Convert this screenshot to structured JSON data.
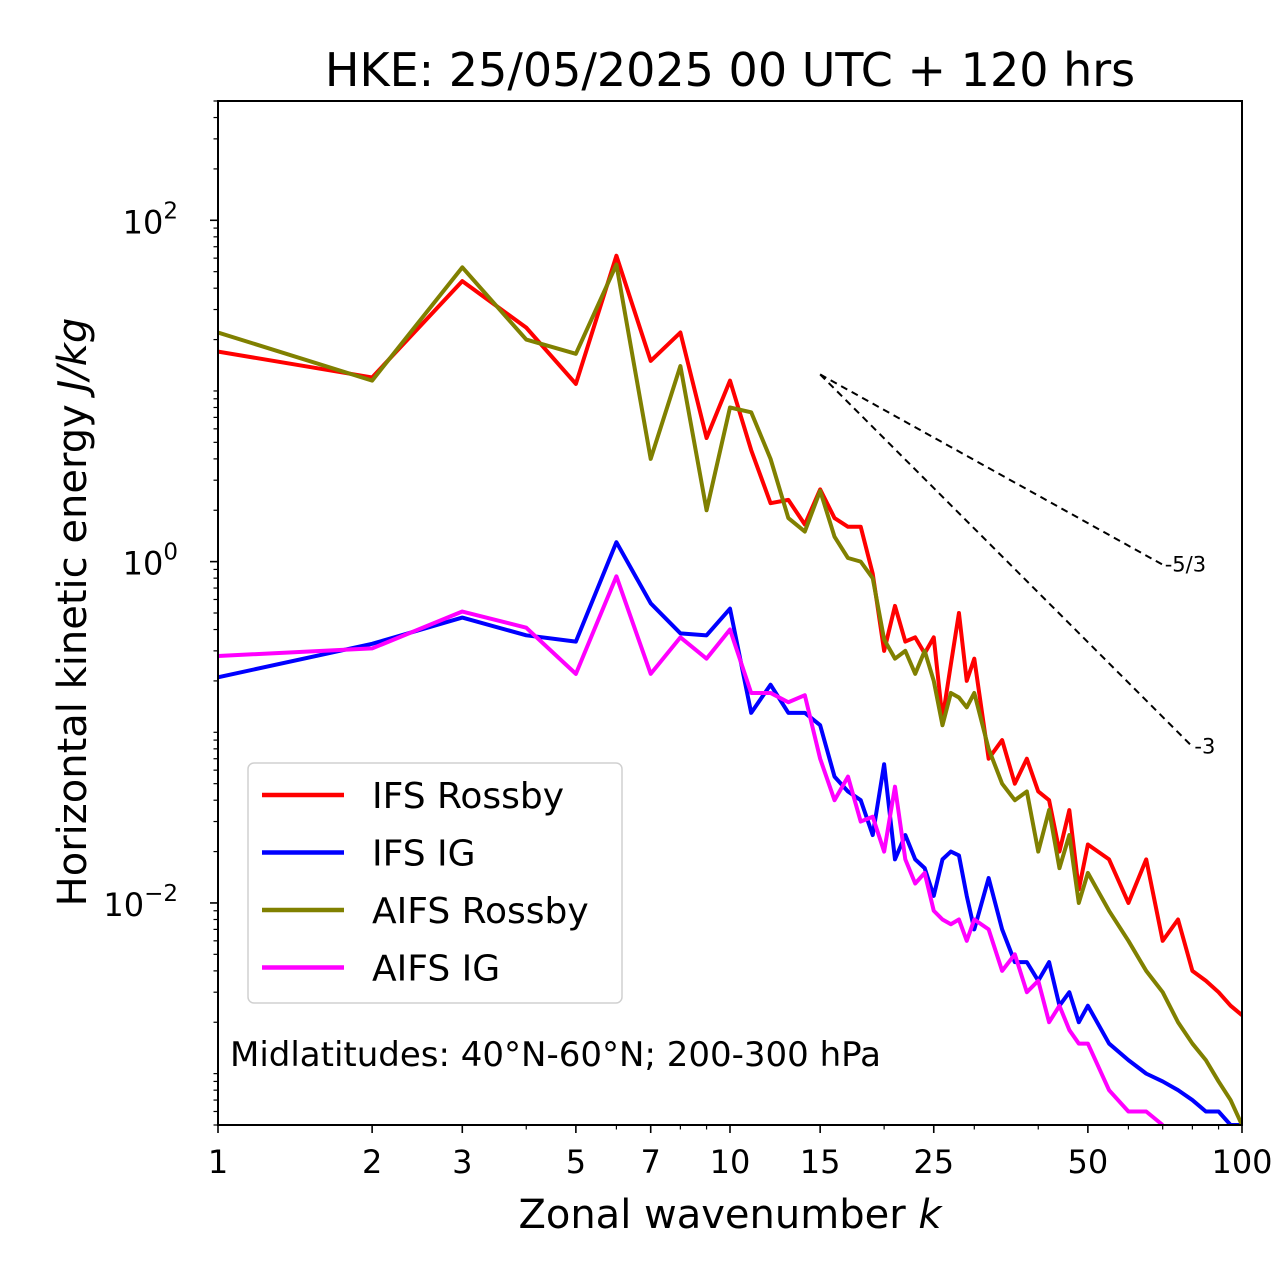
{
  "chart_data": {
    "type": "line",
    "title": "HKE: 25/05/2025 00 UTC + 120 hrs",
    "xlabel_text": "Zonal wavenumber ",
    "xlabel_symbol": "k",
    "ylabel_text": "Horizontal kinetic energy ",
    "ylabel_units": "J/kg",
    "xscale": "log",
    "yscale": "log",
    "xlim": [
      1,
      100
    ],
    "ylim": [
      0.0005,
      500
    ],
    "xticks": [
      1,
      2,
      3,
      5,
      7,
      10,
      15,
      25,
      50,
      100
    ],
    "xtick_labels": [
      "1",
      "2",
      "3",
      "5",
      "7",
      "10",
      "15",
      "25",
      "50",
      "100"
    ],
    "yticks": [
      0.01,
      1,
      100
    ],
    "ytick_base": [
      "10",
      "10",
      "10"
    ],
    "ytick_exp": [
      "−2",
      "0",
      "2"
    ],
    "grid": false,
    "legend_position": "lower-left",
    "annotation": "Midlatitudes: 40°N-60°N; 200-300 hPa",
    "slopes": [
      {
        "label": "-5/3",
        "slope": -1.6667,
        "k0": 15,
        "k1": 70,
        "e0": 12.5
      },
      {
        "label": "-3",
        "slope": -3,
        "k0": 15,
        "k1": 80,
        "e0": 12.5
      }
    ],
    "series": [
      {
        "name": "IFS Rossby",
        "color": "#ff0000",
        "x": [
          1,
          2,
          3,
          4,
          5,
          6,
          7,
          8,
          9,
          10,
          11,
          12,
          13,
          14,
          15,
          16,
          17,
          18,
          19,
          20,
          21,
          22,
          23,
          24,
          25,
          26,
          27,
          28,
          29,
          30,
          32,
          34,
          36,
          38,
          40,
          42,
          44,
          46,
          48,
          50,
          55,
          60,
          65,
          70,
          75,
          80,
          85,
          90,
          95,
          100
        ],
        "values": [
          17,
          12,
          44,
          23.5,
          11,
          62,
          15,
          22,
          5.3,
          11.5,
          4.5,
          2.2,
          2.3,
          1.65,
          2.65,
          1.8,
          1.6,
          1.6,
          0.85,
          0.3,
          0.55,
          0.34,
          0.36,
          0.29,
          0.36,
          0.12,
          0.25,
          0.5,
          0.2,
          0.27,
          0.07,
          0.09,
          0.05,
          0.07,
          0.045,
          0.04,
          0.02,
          0.035,
          0.012,
          0.022,
          0.018,
          0.01,
          0.018,
          0.006,
          0.008,
          0.004,
          0.0035,
          0.003,
          0.0025,
          0.0022
        ]
      },
      {
        "name": "IFS IG",
        "color": "#0000ff",
        "x": [
          1,
          2,
          3,
          4,
          5,
          6,
          7,
          8,
          9,
          10,
          11,
          12,
          13,
          14,
          15,
          16,
          17,
          18,
          19,
          20,
          21,
          22,
          23,
          24,
          25,
          26,
          27,
          28,
          29,
          30,
          32,
          34,
          36,
          38,
          40,
          42,
          44,
          46,
          48,
          50,
          55,
          60,
          65,
          70,
          75,
          80,
          85,
          90,
          95,
          100
        ],
        "values": [
          0.21,
          0.33,
          0.47,
          0.37,
          0.34,
          1.3,
          0.57,
          0.38,
          0.37,
          0.53,
          0.13,
          0.19,
          0.13,
          0.13,
          0.11,
          0.055,
          0.045,
          0.04,
          0.025,
          0.065,
          0.018,
          0.025,
          0.018,
          0.016,
          0.011,
          0.018,
          0.02,
          0.019,
          0.011,
          0.007,
          0.014,
          0.007,
          0.0045,
          0.0045,
          0.0035,
          0.0045,
          0.0025,
          0.003,
          0.002,
          0.0025,
          0.0015,
          0.0012,
          0.001,
          0.0009,
          0.0008,
          0.0007,
          0.0006,
          0.0006,
          0.0005,
          0.0005
        ]
      },
      {
        "name": "AIFS Rossby",
        "color": "#808000",
        "x": [
          1,
          2,
          3,
          4,
          5,
          6,
          7,
          8,
          9,
          10,
          11,
          12,
          13,
          14,
          15,
          16,
          17,
          18,
          19,
          20,
          21,
          22,
          23,
          24,
          25,
          26,
          27,
          28,
          29,
          30,
          32,
          34,
          36,
          38,
          40,
          42,
          44,
          46,
          48,
          50,
          55,
          60,
          65,
          70,
          75,
          80,
          85,
          90,
          95,
          100
        ],
        "values": [
          22,
          11.5,
          53,
          20,
          16.5,
          55,
          4,
          14,
          2,
          8,
          7.5,
          4,
          1.8,
          1.5,
          2.6,
          1.4,
          1.05,
          1.0,
          0.8,
          0.35,
          0.27,
          0.3,
          0.22,
          0.3,
          0.2,
          0.11,
          0.17,
          0.16,
          0.14,
          0.17,
          0.08,
          0.05,
          0.04,
          0.045,
          0.02,
          0.035,
          0.016,
          0.025,
          0.01,
          0.015,
          0.009,
          0.006,
          0.004,
          0.003,
          0.002,
          0.0015,
          0.0012,
          0.0009,
          0.0007,
          0.0005
        ]
      },
      {
        "name": "AIFS IG",
        "color": "#ff00ff",
        "x": [
          1,
          2,
          3,
          4,
          5,
          6,
          7,
          8,
          9,
          10,
          11,
          12,
          13,
          14,
          15,
          16,
          17,
          18,
          19,
          20,
          21,
          22,
          23,
          24,
          25,
          26,
          27,
          28,
          29,
          30,
          32,
          34,
          36,
          38,
          40,
          42,
          44,
          46,
          48,
          50,
          55,
          60,
          65,
          70
        ],
        "values": [
          0.28,
          0.31,
          0.51,
          0.41,
          0.22,
          0.82,
          0.22,
          0.36,
          0.27,
          0.4,
          0.17,
          0.17,
          0.15,
          0.165,
          0.07,
          0.04,
          0.055,
          0.03,
          0.032,
          0.02,
          0.048,
          0.018,
          0.013,
          0.015,
          0.009,
          0.008,
          0.0075,
          0.008,
          0.006,
          0.008,
          0.007,
          0.004,
          0.005,
          0.003,
          0.0035,
          0.002,
          0.0025,
          0.0018,
          0.0015,
          0.0015,
          0.0008,
          0.0006,
          0.0006,
          0.0005
        ]
      }
    ]
  }
}
